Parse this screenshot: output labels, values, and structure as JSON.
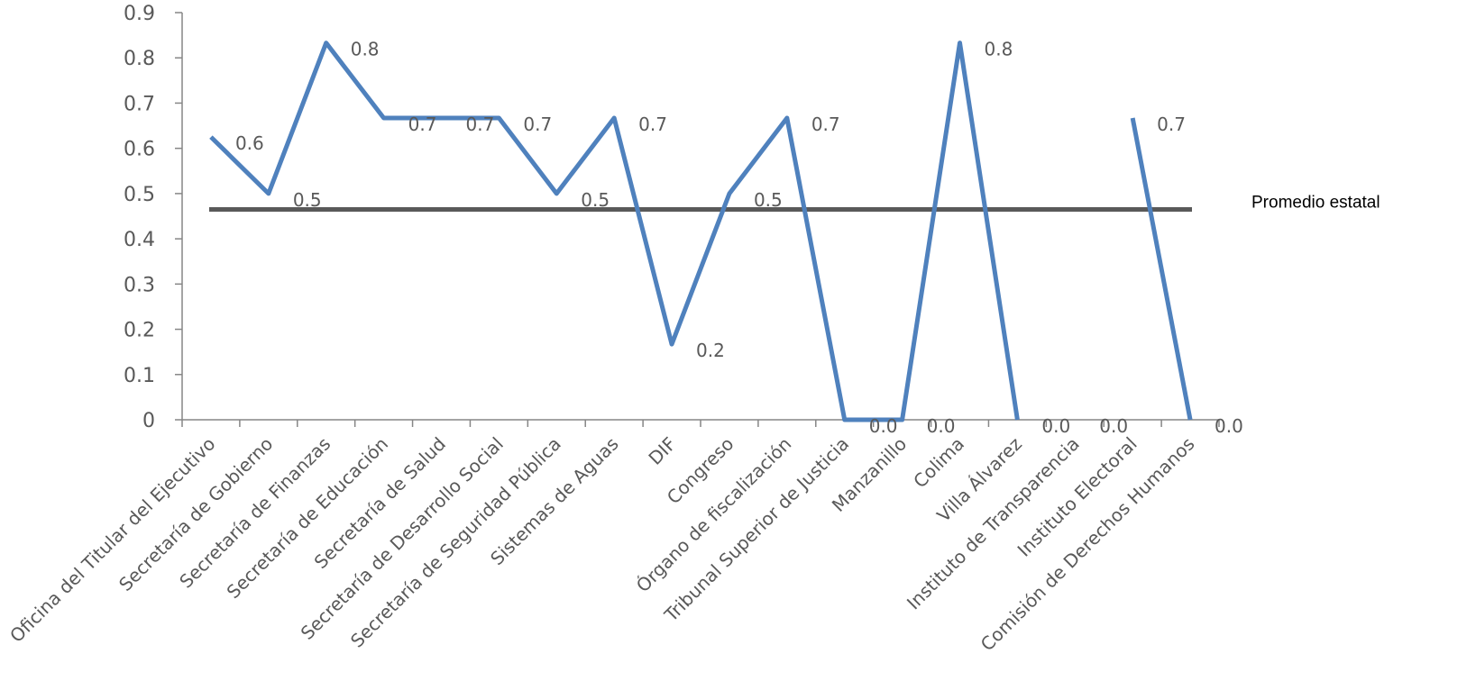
{
  "chart_data": {
    "type": "line",
    "title": "",
    "xlabel": "",
    "ylabel": "",
    "ylim": [
      0,
      0.9
    ],
    "yticks": [
      "0",
      "0.1",
      "0.2",
      "0.3",
      "0.4",
      "0.5",
      "0.6",
      "0.7",
      "0.8",
      "0.9"
    ],
    "grid": false,
    "categories": [
      "Oficina del Titular del Ejecutivo",
      "Secretaría de Gobierno",
      "Secretaría de Finanzas",
      "Secretaría de Educación",
      "Secretaría de Salud",
      "Secretaría de Desarrollo Social",
      "Secretaría de Seguridad Pública",
      "Sistemas de Aguas",
      "DIF",
      "Congreso",
      "Órgano de fiscalización",
      "Tribunal Superior de Justicia",
      "Manzanillo",
      "Colima",
      "Villa Álvarez",
      "Instituto de Transparencia",
      "Instituto Electoral",
      "Comisión de Derechos Humanos"
    ],
    "series": [
      {
        "name": "",
        "color": "#4F81BD",
        "values": [
          0.625,
          0.5,
          0.833,
          0.667,
          0.667,
          0.667,
          0.5,
          0.667,
          0.167,
          0.5,
          0.667,
          0.0,
          0.0,
          0.833,
          0.0,
          null,
          0.667,
          0.0
        ],
        "labels": [
          "0.6",
          "0.5",
          "0.8",
          "0.7",
          "0.7",
          "0.7",
          "0.5",
          "0.7",
          "0.2",
          "0.5",
          "0.7",
          "0.0",
          "0.0",
          "0.8",
          "0.0",
          "0.0",
          "0.7",
          "0.0"
        ]
      },
      {
        "name": "Promedio estatal",
        "color": "#595959",
        "values": [
          0.465,
          0.465,
          0.465,
          0.465,
          0.465,
          0.465,
          0.465,
          0.465,
          0.465,
          0.465,
          0.465,
          0.465,
          0.465,
          0.465,
          0.465,
          0.465,
          0.465,
          0.465
        ]
      }
    ]
  }
}
